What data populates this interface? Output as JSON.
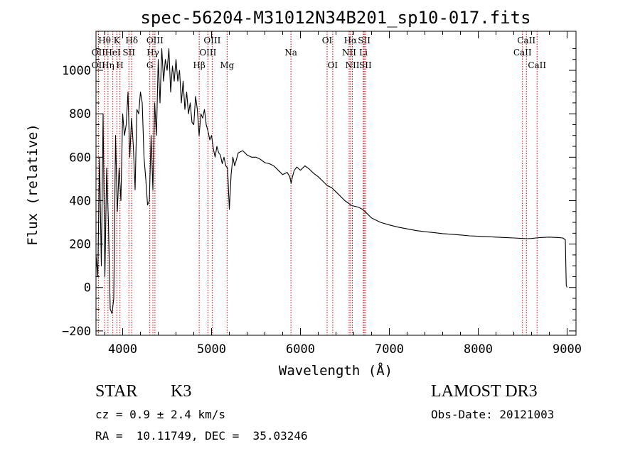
{
  "chart_data": {
    "type": "line",
    "title": "spec-56204-M31012N34B201_sp10-017.fits",
    "xlabel": "Wavelength (Å)",
    "ylabel": "Flux (relative)",
    "xlim": [
      3700,
      9100
    ],
    "ylim": [
      -220,
      1180
    ],
    "xticks": [
      4000,
      5000,
      6000,
      7000,
      8000,
      9000
    ],
    "xtick_labels": [
      "4000",
      "5000",
      "6000",
      "7000",
      "8000",
      "9000"
    ],
    "yticks": [
      -200,
      0,
      200,
      400,
      600,
      800,
      1000
    ],
    "ytick_labels": [
      "−200",
      "0",
      "200",
      "400",
      "600",
      "800",
      "1000"
    ],
    "series": [
      {
        "name": "spectrum",
        "x": [
          3700,
          3720,
          3740,
          3760,
          3780,
          3800,
          3820,
          3840,
          3860,
          3880,
          3900,
          3920,
          3940,
          3960,
          3980,
          4000,
          4020,
          4040,
          4060,
          4080,
          4100,
          4120,
          4140,
          4160,
          4180,
          4200,
          4220,
          4240,
          4260,
          4280,
          4300,
          4320,
          4340,
          4360,
          4380,
          4400,
          4420,
          4440,
          4460,
          4480,
          4500,
          4520,
          4540,
          4560,
          4580,
          4600,
          4620,
          4640,
          4660,
          4680,
          4700,
          4720,
          4740,
          4760,
          4780,
          4800,
          4820,
          4840,
          4860,
          4880,
          4900,
          4920,
          4940,
          4960,
          4980,
          5000,
          5020,
          5040,
          5060,
          5080,
          5100,
          5120,
          5140,
          5160,
          5180,
          5200,
          5220,
          5240,
          5260,
          5280,
          5300,
          5350,
          5400,
          5450,
          5500,
          5550,
          5600,
          5650,
          5700,
          5750,
          5800,
          5850,
          5880,
          5895,
          5910,
          5930,
          5960,
          6000,
          6050,
          6100,
          6150,
          6200,
          6250,
          6300,
          6350,
          6400,
          6450,
          6500,
          6550,
          6563,
          6600,
          6650,
          6700,
          6750,
          6800,
          6900,
          7000,
          7100,
          7200,
          7300,
          7400,
          7500,
          7600,
          7700,
          7800,
          7900,
          8000,
          8100,
          8200,
          8300,
          8400,
          8500,
          8550,
          8600,
          8650,
          8700,
          8800,
          8900,
          8950,
          8980,
          8990,
          9000
        ],
        "y": [
          150,
          50,
          600,
          100,
          800,
          50,
          550,
          300,
          -100,
          -120,
          -50,
          700,
          350,
          550,
          400,
          800,
          700,
          750,
          900,
          600,
          780,
          650,
          450,
          820,
          800,
          900,
          850,
          600,
          500,
          380,
          400,
          700,
          450,
          850,
          700,
          1050,
          850,
          1100,
          950,
          1050,
          1000,
          1100,
          900,
          1020,
          950,
          1050,
          950,
          1000,
          850,
          950,
          820,
          900,
          800,
          850,
          760,
          750,
          880,
          820,
          700,
          800,
          780,
          820,
          750,
          720,
          680,
          700,
          640,
          600,
          650,
          620,
          610,
          570,
          600,
          560,
          550,
          360,
          520,
          600,
          560,
          590,
          620,
          630,
          610,
          600,
          600,
          590,
          575,
          570,
          560,
          540,
          520,
          530,
          510,
          480,
          510,
          540,
          555,
          540,
          560,
          545,
          525,
          510,
          490,
          470,
          460,
          440,
          420,
          400,
          385,
          380,
          375,
          370,
          360,
          340,
          320,
          300,
          288,
          278,
          270,
          262,
          257,
          253,
          248,
          245,
          242,
          238,
          236,
          234,
          232,
          230,
          228,
          226,
          225,
          226,
          228,
          230,
          232,
          230,
          228,
          220,
          10,
          0
        ]
      }
    ],
    "lines": [
      {
        "label": "Hθ",
        "x": 3797,
        "row": 0
      },
      {
        "label": "K",
        "x": 3934,
        "row": 0
      },
      {
        "label": "Hδ",
        "x": 4102,
        "row": 0
      },
      {
        "label": "OII",
        "x": 3727,
        "row": 1
      },
      {
        "label": "HeI",
        "x": 3889,
        "row": 1
      },
      {
        "label": "SII",
        "x": 4070,
        "row": 1
      },
      {
        "label": "OII",
        "x": 3727,
        "row": 2
      },
      {
        "label": "Hη",
        "x": 3835,
        "row": 2
      },
      {
        "label": "H",
        "x": 3969,
        "row": 2
      },
      {
        "label": "OIII",
        "x": 4363,
        "row": 0
      },
      {
        "label": "Hγ",
        "x": 4340,
        "row": 1
      },
      {
        "label": "G",
        "x": 4305,
        "row": 2
      },
      {
        "label": "OIII",
        "x": 5007,
        "row": 0
      },
      {
        "label": "OIII",
        "x": 4959,
        "row": 1
      },
      {
        "label": "Hβ",
        "x": 4861,
        "row": 2
      },
      {
        "label": "Mg",
        "x": 5175,
        "row": 2
      },
      {
        "label": "Na",
        "x": 5893,
        "row": 1
      },
      {
        "label": "OI",
        "x": 6300,
        "row": 0
      },
      {
        "label": "OI",
        "x": 6363,
        "row": 2
      },
      {
        "label": "Hα",
        "x": 6563,
        "row": 0
      },
      {
        "label": "SII",
        "x": 6717,
        "row": 0
      },
      {
        "label": "NII",
        "x": 6548,
        "row": 1
      },
      {
        "label": "Li",
        "x": 6708,
        "row": 1
      },
      {
        "label": "NII",
        "x": 6584,
        "row": 2
      },
      {
        "label": "SII",
        "x": 6731,
        "row": 2
      },
      {
        "label": "CaII",
        "x": 8542,
        "row": 0
      },
      {
        "label": "CaII",
        "x": 8498,
        "row": 1
      },
      {
        "label": "CaII",
        "x": 8662,
        "row": 2
      }
    ]
  },
  "info": {
    "class": "STAR",
    "subclass": "K3",
    "survey": "LAMOST DR3",
    "cz": "cz = 0.9 ± 2.4 km/s",
    "obs_date": "Obs-Date: 20121003",
    "coords": "RA =  10.11749, DEC =  35.03246"
  }
}
